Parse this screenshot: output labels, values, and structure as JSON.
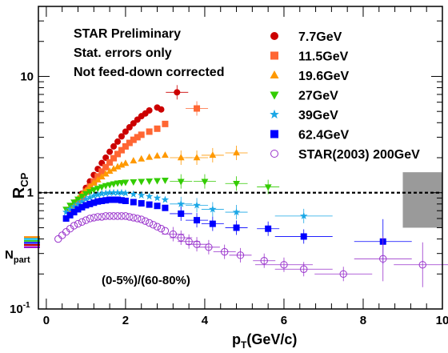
{
  "chart_data": {
    "type": "scatter",
    "xlabel": "p",
    "xlabel_sub": "T",
    "xlabel_unit": "(GeV/c)",
    "ylabel": "R",
    "ylabel_sub": "CP",
    "yscale": "log",
    "xlim": [
      -0.2,
      10
    ],
    "ylim": [
      0.1,
      40
    ],
    "xticks": [
      "0",
      "2",
      "4",
      "6",
      "8",
      "10"
    ],
    "yticks": [
      "1",
      "10"
    ],
    "ytick_min_label_base": "10",
    "ytick_min_label_exp": "-1",
    "annotations": [
      "STAR Preliminary",
      "Stat. errors only",
      "Not feed-down corrected"
    ],
    "centrality_label": "(0-5%)/(60-80%)",
    "npart_label": "N",
    "npart_sub": "part",
    "reference_line": 1.0,
    "legend_position": "top-right",
    "systematic_box": {
      "x": [
        9.0,
        10.0
      ],
      "y": [
        0.5,
        1.5
      ],
      "color": "#9a9a9a"
    },
    "npart_bars": [
      {
        "value": 0.415,
        "color": "#ff8c00"
      },
      {
        "value": 0.4,
        "color": "#00bfff"
      },
      {
        "value": 0.385,
        "color": "#32cd32"
      },
      {
        "value": 0.37,
        "color": "#0000ff"
      },
      {
        "value": 0.355,
        "color": "#c00000"
      },
      {
        "value": 0.34,
        "color": "#9400d3"
      }
    ],
    "series": [
      {
        "name": "7.7GeV",
        "marker": "circle",
        "color": "#cc0000",
        "points": [
          [
            0.7,
            0.75
          ],
          [
            0.8,
            0.85
          ],
          [
            0.9,
            0.98
          ],
          [
            1.0,
            1.1
          ],
          [
            1.1,
            1.25
          ],
          [
            1.2,
            1.42
          ],
          [
            1.3,
            1.6
          ],
          [
            1.4,
            1.8
          ],
          [
            1.5,
            2.0
          ],
          [
            1.6,
            2.25
          ],
          [
            1.7,
            2.5
          ],
          [
            1.8,
            2.75
          ],
          [
            1.9,
            3.05
          ],
          [
            2.0,
            3.35
          ],
          [
            2.1,
            3.65
          ],
          [
            2.2,
            3.95
          ],
          [
            2.3,
            4.25
          ],
          [
            2.4,
            4.55
          ],
          [
            2.5,
            4.8
          ],
          [
            2.6,
            5.1
          ],
          [
            2.8,
            5.4
          ],
          [
            2.9,
            5.2
          ],
          [
            3.3,
            7.3
          ]
        ]
      },
      {
        "name": "11.5GeV",
        "marker": "square",
        "color": "#ff6633",
        "points": [
          [
            0.6,
            0.68
          ],
          [
            0.7,
            0.75
          ],
          [
            0.8,
            0.83
          ],
          [
            0.9,
            0.92
          ],
          [
            1.0,
            1.02
          ],
          [
            1.1,
            1.13
          ],
          [
            1.2,
            1.25
          ],
          [
            1.3,
            1.38
          ],
          [
            1.4,
            1.52
          ],
          [
            1.5,
            1.66
          ],
          [
            1.6,
            1.82
          ],
          [
            1.7,
            1.98
          ],
          [
            1.8,
            2.15
          ],
          [
            1.9,
            2.32
          ],
          [
            2.0,
            2.5
          ],
          [
            2.1,
            2.68
          ],
          [
            2.2,
            2.85
          ],
          [
            2.3,
            3.0
          ],
          [
            2.4,
            3.15
          ],
          [
            2.6,
            3.35
          ],
          [
            2.8,
            3.55
          ],
          [
            3.0,
            3.9
          ],
          [
            3.8,
            5.3
          ]
        ]
      },
      {
        "name": "19.6GeV",
        "marker": "triangle-up",
        "color": "#ff9900",
        "points": [
          [
            0.6,
            0.75
          ],
          [
            0.7,
            0.82
          ],
          [
            0.8,
            0.89
          ],
          [
            0.9,
            0.97
          ],
          [
            1.0,
            1.05
          ],
          [
            1.1,
            1.13
          ],
          [
            1.2,
            1.21
          ],
          [
            1.3,
            1.29
          ],
          [
            1.4,
            1.37
          ],
          [
            1.5,
            1.45
          ],
          [
            1.6,
            1.53
          ],
          [
            1.7,
            1.6
          ],
          [
            1.8,
            1.67
          ],
          [
            1.9,
            1.73
          ],
          [
            2.0,
            1.79
          ],
          [
            2.2,
            1.88
          ],
          [
            2.4,
            1.95
          ],
          [
            2.6,
            2.02
          ],
          [
            2.8,
            2.07
          ],
          [
            3.0,
            2.1
          ],
          [
            3.4,
            2.0
          ],
          [
            3.8,
            2.0
          ],
          [
            4.2,
            2.1
          ],
          [
            4.8,
            2.2
          ]
        ]
      },
      {
        "name": "27GeV",
        "marker": "triangle-down",
        "color": "#33cc00",
        "points": [
          [
            0.5,
            0.72
          ],
          [
            0.6,
            0.78
          ],
          [
            0.7,
            0.83
          ],
          [
            0.8,
            0.88
          ],
          [
            0.9,
            0.93
          ],
          [
            1.0,
            0.98
          ],
          [
            1.1,
            1.02
          ],
          [
            1.2,
            1.06
          ],
          [
            1.3,
            1.09
          ],
          [
            1.4,
            1.12
          ],
          [
            1.5,
            1.15
          ],
          [
            1.6,
            1.17
          ],
          [
            1.7,
            1.19
          ],
          [
            1.8,
            1.21
          ],
          [
            1.9,
            1.22
          ],
          [
            2.0,
            1.23
          ],
          [
            2.2,
            1.24
          ],
          [
            2.4,
            1.25
          ],
          [
            2.6,
            1.26
          ],
          [
            2.8,
            1.27
          ],
          [
            3.0,
            1.28
          ],
          [
            3.4,
            1.25
          ],
          [
            4.0,
            1.25
          ],
          [
            4.8,
            1.2
          ],
          [
            5.6,
            1.12
          ]
        ]
      },
      {
        "name": "39GeV",
        "marker": "star",
        "color": "#1aa7e6",
        "points": [
          [
            0.5,
            0.68
          ],
          [
            0.6,
            0.72
          ],
          [
            0.7,
            0.76
          ],
          [
            0.8,
            0.8
          ],
          [
            0.9,
            0.84
          ],
          [
            1.0,
            0.88
          ],
          [
            1.1,
            0.91
          ],
          [
            1.2,
            0.94
          ],
          [
            1.3,
            0.96
          ],
          [
            1.4,
            0.98
          ],
          [
            1.5,
            0.99
          ],
          [
            1.6,
            1.0
          ],
          [
            1.7,
            1.0
          ],
          [
            1.8,
            1.0
          ],
          [
            1.9,
            1.0
          ],
          [
            2.0,
            0.99
          ],
          [
            2.2,
            0.97
          ],
          [
            2.4,
            0.95
          ],
          [
            2.6,
            0.93
          ],
          [
            2.8,
            0.9
          ],
          [
            3.0,
            0.87
          ],
          [
            3.4,
            0.8
          ],
          [
            3.8,
            0.78
          ],
          [
            4.2,
            0.72
          ],
          [
            4.8,
            0.68
          ],
          [
            6.5,
            0.63
          ]
        ]
      },
      {
        "name": "62.4GeV",
        "marker": "square",
        "color": "#0000ff",
        "points": [
          [
            0.5,
            0.6
          ],
          [
            0.6,
            0.64
          ],
          [
            0.7,
            0.68
          ],
          [
            0.8,
            0.72
          ],
          [
            0.9,
            0.75
          ],
          [
            1.0,
            0.78
          ],
          [
            1.1,
            0.8
          ],
          [
            1.2,
            0.82
          ],
          [
            1.3,
            0.84
          ],
          [
            1.4,
            0.85
          ],
          [
            1.5,
            0.86
          ],
          [
            1.6,
            0.87
          ],
          [
            1.7,
            0.87
          ],
          [
            1.8,
            0.87
          ],
          [
            1.9,
            0.86
          ],
          [
            2.0,
            0.85
          ],
          [
            2.2,
            0.83
          ],
          [
            2.4,
            0.81
          ],
          [
            2.6,
            0.79
          ],
          [
            2.8,
            0.77
          ],
          [
            3.0,
            0.74
          ],
          [
            3.4,
            0.66
          ],
          [
            3.8,
            0.58
          ],
          [
            4.2,
            0.54
          ],
          [
            4.8,
            0.5
          ],
          [
            5.6,
            0.49
          ],
          [
            6.5,
            0.42
          ],
          [
            8.5,
            0.38
          ]
        ]
      },
      {
        "name": "STAR(2003) 200GeV",
        "marker": "open-circle",
        "color": "#9933cc",
        "points": [
          [
            0.3,
            0.4
          ],
          [
            0.4,
            0.43
          ],
          [
            0.5,
            0.46
          ],
          [
            0.6,
            0.49
          ],
          [
            0.7,
            0.52
          ],
          [
            0.8,
            0.54
          ],
          [
            0.9,
            0.56
          ],
          [
            1.0,
            0.58
          ],
          [
            1.1,
            0.6
          ],
          [
            1.2,
            0.61
          ],
          [
            1.3,
            0.62
          ],
          [
            1.4,
            0.62
          ],
          [
            1.5,
            0.63
          ],
          [
            1.6,
            0.63
          ],
          [
            1.7,
            0.63
          ],
          [
            1.8,
            0.63
          ],
          [
            1.9,
            0.63
          ],
          [
            2.0,
            0.63
          ],
          [
            2.1,
            0.62
          ],
          [
            2.2,
            0.61
          ],
          [
            2.3,
            0.6
          ],
          [
            2.4,
            0.59
          ],
          [
            2.5,
            0.57
          ],
          [
            2.6,
            0.55
          ],
          [
            2.7,
            0.53
          ],
          [
            2.8,
            0.51
          ],
          [
            2.9,
            0.49
          ],
          [
            3.0,
            0.47
          ],
          [
            3.2,
            0.44
          ],
          [
            3.4,
            0.41
          ],
          [
            3.6,
            0.38
          ],
          [
            3.8,
            0.36
          ],
          [
            4.1,
            0.34
          ],
          [
            4.5,
            0.31
          ],
          [
            4.9,
            0.29
          ],
          [
            5.5,
            0.26
          ],
          [
            6.0,
            0.24
          ],
          [
            6.5,
            0.22
          ],
          [
            7.5,
            0.2
          ],
          [
            8.5,
            0.27
          ],
          [
            9.5,
            0.24
          ]
        ]
      }
    ]
  }
}
